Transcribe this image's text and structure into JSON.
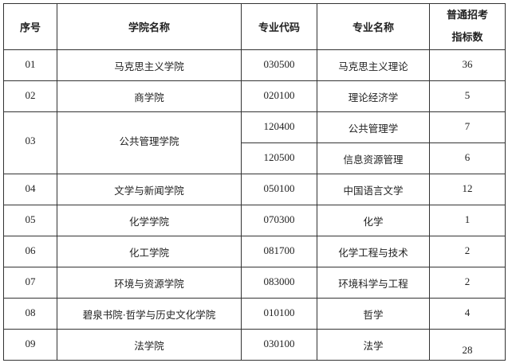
{
  "headers": [
    "序号",
    "学院名称",
    "专业代码",
    "专业名称",
    "普通招考",
    "指标数"
  ],
  "rows": [
    {
      "no": "01",
      "college": "马克思主义学院",
      "code": "030500",
      "major": "马克思主义理论",
      "quota": "36"
    },
    {
      "no": "02",
      "college": "商学院",
      "code": "020100",
      "major": "理论经济学",
      "quota": "5"
    },
    {
      "no": "03",
      "college": "公共管理学院",
      "code": "120400",
      "major": "公共管理学",
      "quota": "7"
    },
    {
      "code": "120500",
      "major": "信息资源管理",
      "quota": "6"
    },
    {
      "no": "04",
      "college": "文学与新闻学院",
      "code": "050100",
      "major": "中国语言文学",
      "quota": "12"
    },
    {
      "no": "05",
      "college": "化学学院",
      "code": "070300",
      "major": "化学",
      "quota": "1"
    },
    {
      "no": "06",
      "college": "化工学院",
      "code": "081700",
      "major": "化学工程与技术",
      "quota": "2"
    },
    {
      "no": "07",
      "college": "环境与资源学院",
      "code": "083000",
      "major": "环境科学与工程",
      "quota": "2"
    },
    {
      "no": "08",
      "college": "碧泉书院·哲学与历史文化学院",
      "code": "010100",
      "major": "哲学",
      "quota": "4"
    },
    {
      "no": "09",
      "college": "法学院",
      "code": "030100",
      "major": "法学",
      "quota": "28"
    }
  ]
}
